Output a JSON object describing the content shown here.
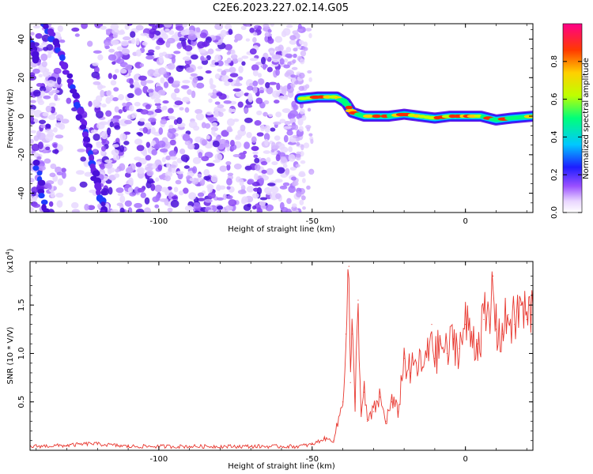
{
  "title": "C2E6.2023.227.02.14.G05",
  "chart_data": [
    {
      "type": "heatmap",
      "xlabel": "Height of straight line (km)",
      "ylabel": "Frequency (Hz)",
      "xlim": [
        -142,
        22
      ],
      "ylim": [
        -50,
        48
      ],
      "xticks": [
        -100,
        -50,
        0
      ],
      "yticks": [
        -40,
        -20,
        0,
        20,
        40
      ],
      "colorbar": {
        "label": "Normalized spectral amplitude",
        "range": [
          0,
          1
        ],
        "ticks": [
          "0.0",
          "0.2",
          "0.4",
          "0.6",
          "0.8"
        ]
      },
      "signal_track": [
        {
          "x": -54,
          "y": 9
        },
        {
          "x": -48,
          "y": 10
        },
        {
          "x": -42,
          "y": 10
        },
        {
          "x": -39,
          "y": 7
        },
        {
          "x": -37,
          "y": 2
        },
        {
          "x": -33,
          "y": 0
        },
        {
          "x": -25,
          "y": 0
        },
        {
          "x": -20,
          "y": 1
        },
        {
          "x": -15,
          "y": 0
        },
        {
          "x": -10,
          "y": -1
        },
        {
          "x": -5,
          "y": 0
        },
        {
          "x": 0,
          "y": 0
        },
        {
          "x": 5,
          "y": 0
        },
        {
          "x": 10,
          "y": -2
        },
        {
          "x": 15,
          "y": -1
        },
        {
          "x": 22,
          "y": 0
        }
      ],
      "noise_region_xlim": [
        -142,
        -53
      ]
    },
    {
      "type": "line",
      "xlabel": "Height of straight line (km)",
      "ylabel": "SNR (10 * V/V)",
      "multiplier_label": "(x10",
      "multiplier_exp": "4",
      "multiplier_close": ")",
      "xlim": [
        -142,
        22
      ],
      "ylim": [
        0,
        1.95
      ],
      "xticks": [
        -100,
        -50,
        0
      ],
      "yticks": [
        "0.5",
        "1.0",
        "1.5"
      ],
      "series": [
        {
          "color": "#e8372f",
          "x": [
            -142,
            -130,
            -122,
            -110,
            -90,
            -70,
            -55,
            -50,
            -46,
            -43,
            -40,
            -39,
            -38,
            -37.5,
            -37,
            -36,
            -35,
            -34,
            -33,
            -32,
            -30,
            -28,
            -26,
            -24,
            -22,
            -20,
            -18,
            -16,
            -14,
            -12,
            -11,
            -10,
            -8,
            -6,
            -4,
            -2,
            0,
            2,
            4,
            6,
            8,
            9,
            10,
            12,
            14,
            16,
            18,
            20,
            22
          ],
          "y": [
            0.04,
            0.05,
            0.07,
            0.04,
            0.04,
            0.04,
            0.04,
            0.06,
            0.12,
            0.1,
            0.5,
            1.2,
            1.9,
            0.7,
            1.2,
            0.5,
            1.55,
            0.35,
            0.6,
            0.3,
            0.4,
            0.55,
            0.3,
            0.5,
            0.4,
            0.95,
            0.8,
            0.9,
            0.85,
            1.0,
            1.3,
            0.95,
            1.1,
            1.0,
            1.15,
            1.05,
            1.3,
            1.2,
            1.1,
            1.35,
            1.3,
            1.8,
            1.25,
            1.2,
            1.4,
            1.3,
            1.5,
            1.35,
            1.5
          ]
        }
      ]
    }
  ]
}
